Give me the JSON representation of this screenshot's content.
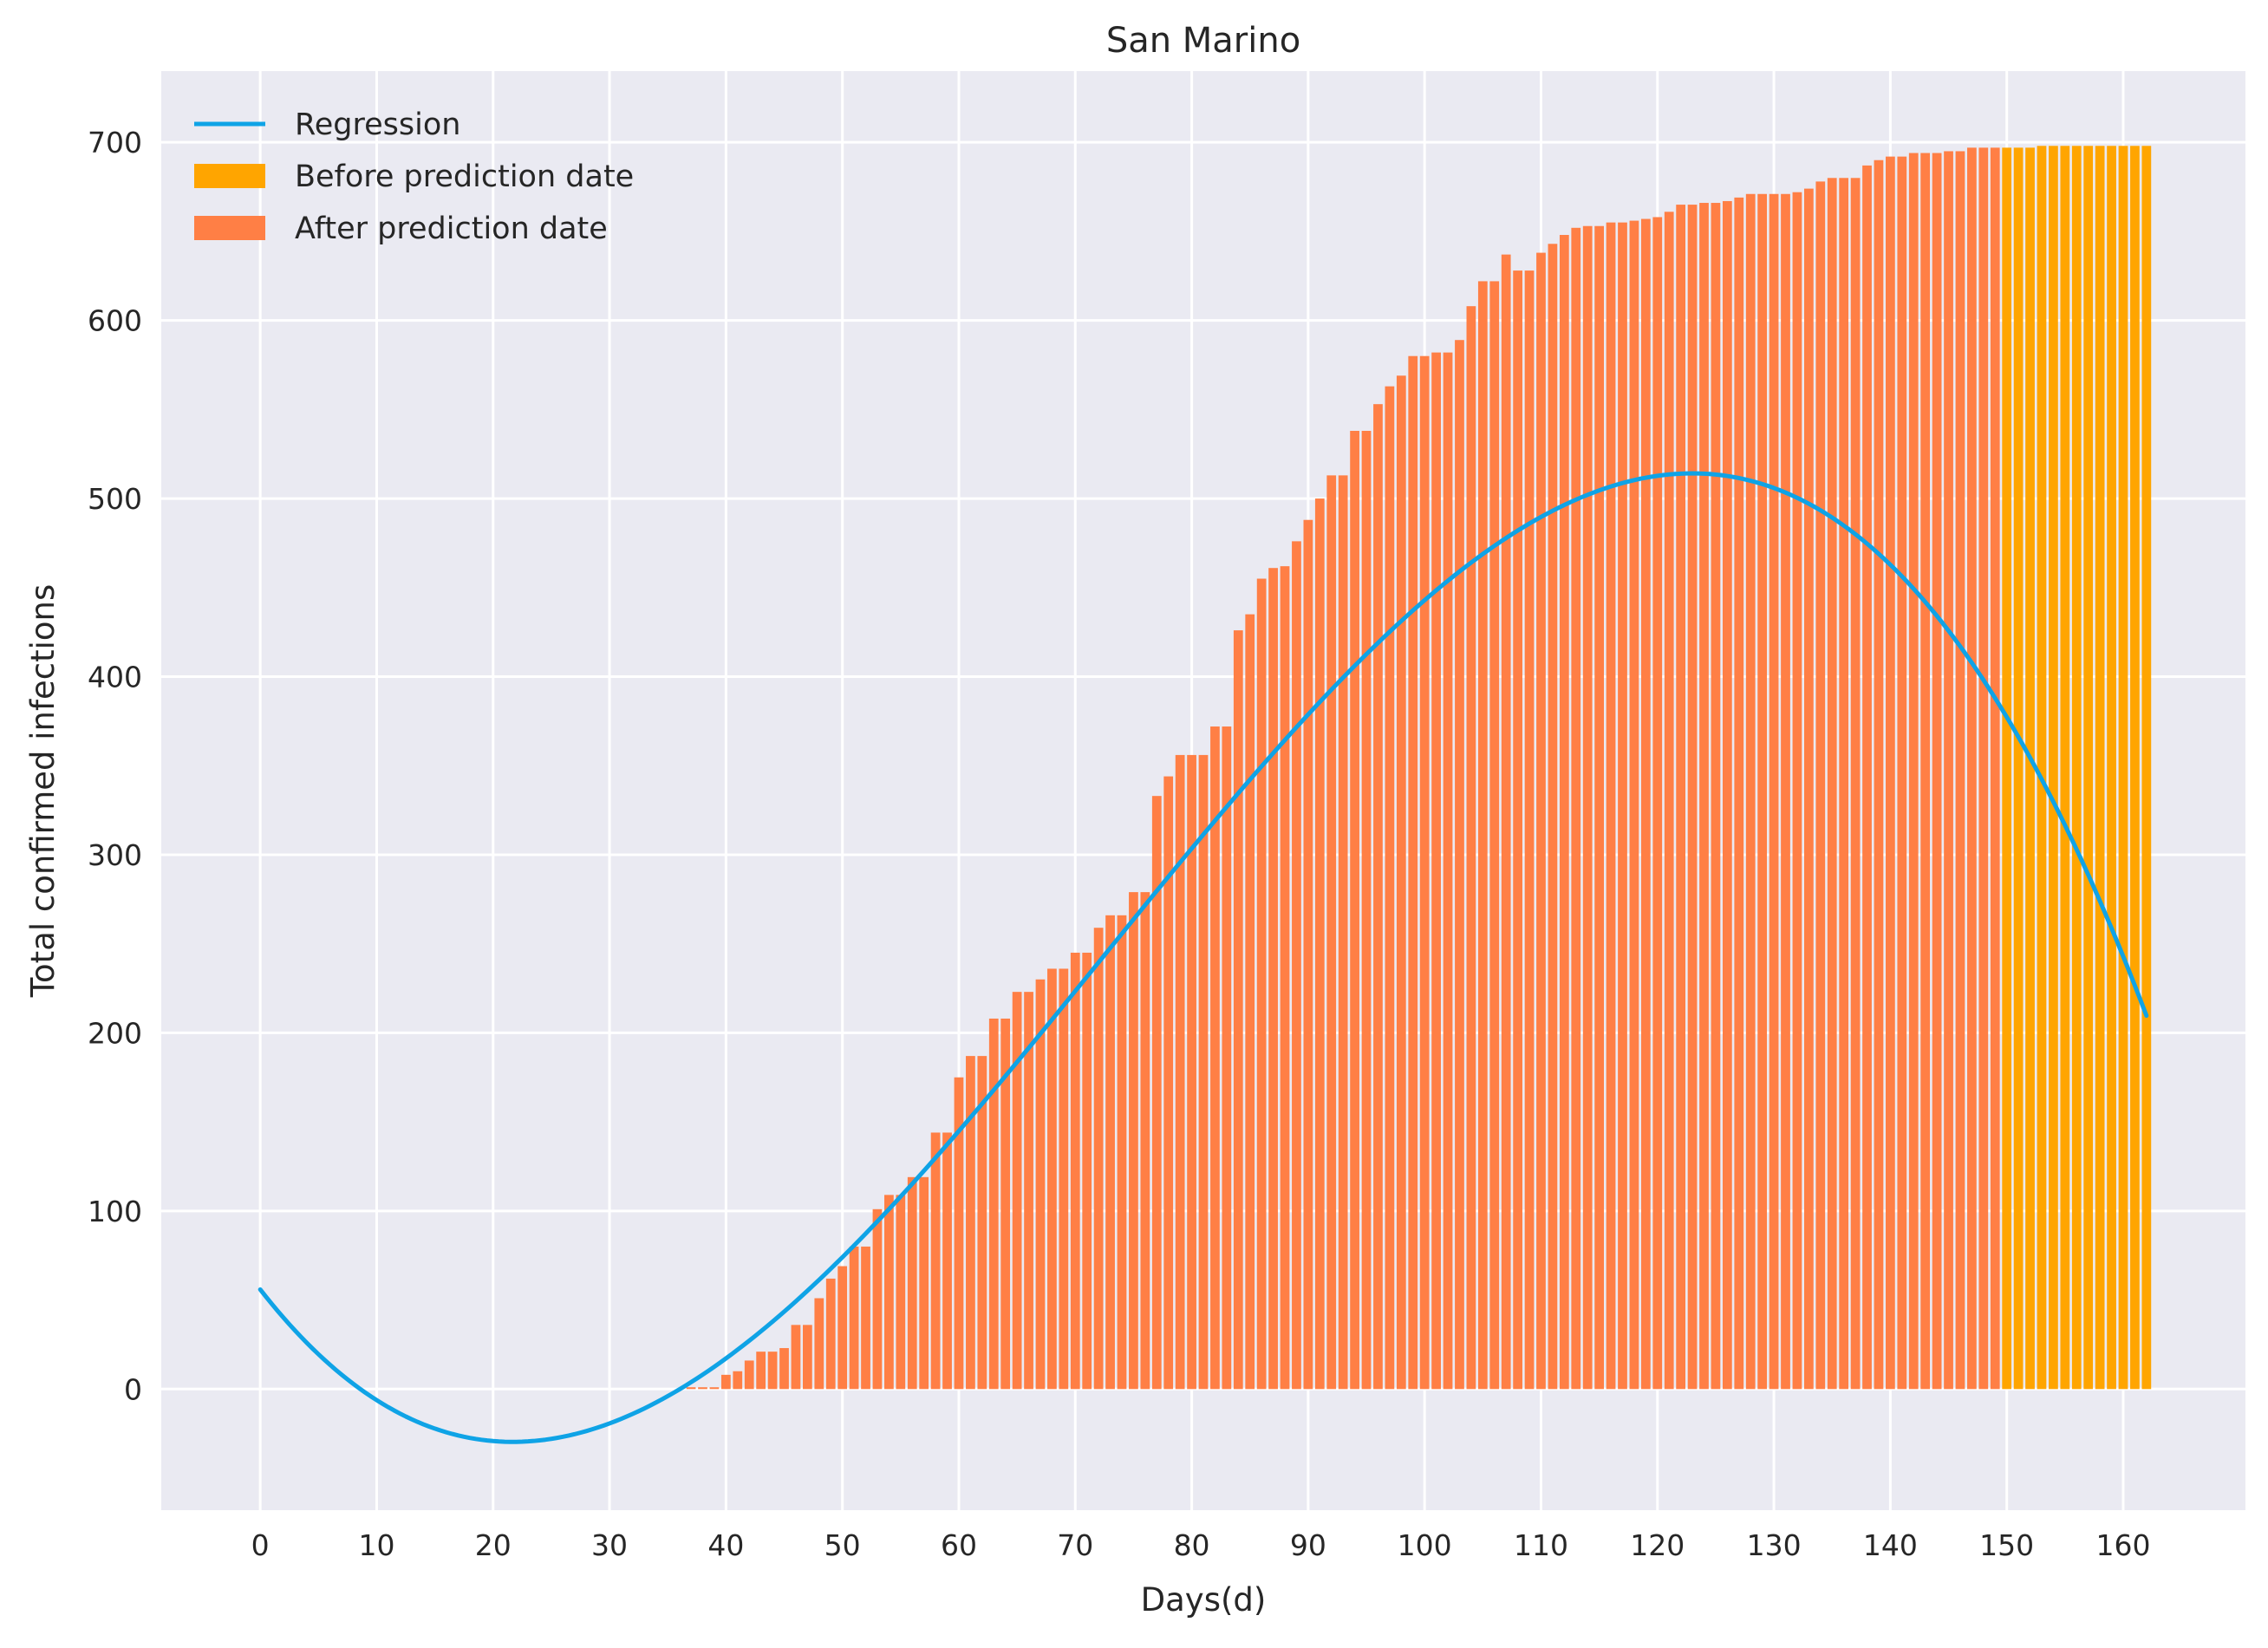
{
  "chart_data": {
    "type": "bar",
    "title": "San Marino",
    "xlabel": "Days(d)",
    "ylabel": "Total confirmed infections",
    "xlim": [
      -8.5,
      170.5
    ],
    "ylim": [
      -68,
      740
    ],
    "xticks": [
      0,
      10,
      20,
      30,
      40,
      50,
      60,
      70,
      80,
      90,
      100,
      110,
      120,
      130,
      140,
      150,
      160
    ],
    "yticks": [
      0,
      100,
      200,
      300,
      400,
      500,
      600,
      700
    ],
    "grid": true,
    "legend_position": "top-left",
    "colors": {
      "plot_background": "#EAEAF2",
      "grid": "#FFFFFF",
      "regression": "#0FA3E6",
      "before_prediction": "#FFA500",
      "after_prediction": "#FF7F45"
    },
    "legend": [
      {
        "label": "Regression",
        "kind": "line",
        "color": "#0FA3E6"
      },
      {
        "label": "Before prediction date",
        "kind": "bar",
        "color": "#FFA500"
      },
      {
        "label": "After prediction date",
        "kind": "bar",
        "color": "#FF7F45"
      }
    ],
    "series": [
      {
        "name": "After prediction date",
        "x_start": 37,
        "values": [
          1,
          1,
          1,
          8,
          10,
          16,
          21,
          21,
          23,
          36,
          36,
          51,
          62,
          69,
          80,
          80,
          101,
          109,
          109,
          119,
          119,
          144,
          144,
          175,
          187,
          187,
          208,
          208,
          223,
          223,
          230,
          236,
          236,
          245,
          245,
          259,
          266,
          266,
          279,
          279,
          333,
          344,
          356,
          356,
          356,
          372,
          372,
          426,
          435,
          455,
          461,
          462,
          476,
          488,
          500,
          513,
          513,
          538,
          538,
          553,
          563,
          569,
          580,
          580,
          582,
          582,
          589,
          608,
          622,
          622,
          637,
          628,
          628,
          638,
          643,
          648,
          652,
          653,
          653,
          655,
          655,
          656,
          657,
          658,
          661,
          665,
          665,
          666,
          666,
          667,
          669,
          671,
          671,
          671,
          671,
          672,
          674,
          678,
          680,
          680,
          680,
          687,
          690,
          692,
          692,
          694,
          694,
          694,
          695,
          695,
          697,
          697,
          697
        ]
      },
      {
        "name": "Before prediction date",
        "x_start": 150,
        "values": [
          697,
          697,
          697,
          698,
          698,
          698,
          698,
          698,
          698,
          698,
          698,
          698,
          698
        ]
      },
      {
        "name": "Regression",
        "type": "line",
        "polynomial_coefficients": [
          55.9,
          -8.38,
          0.2272,
          -0.001047
        ],
        "x_range": [
          0,
          162
        ]
      }
    ]
  }
}
